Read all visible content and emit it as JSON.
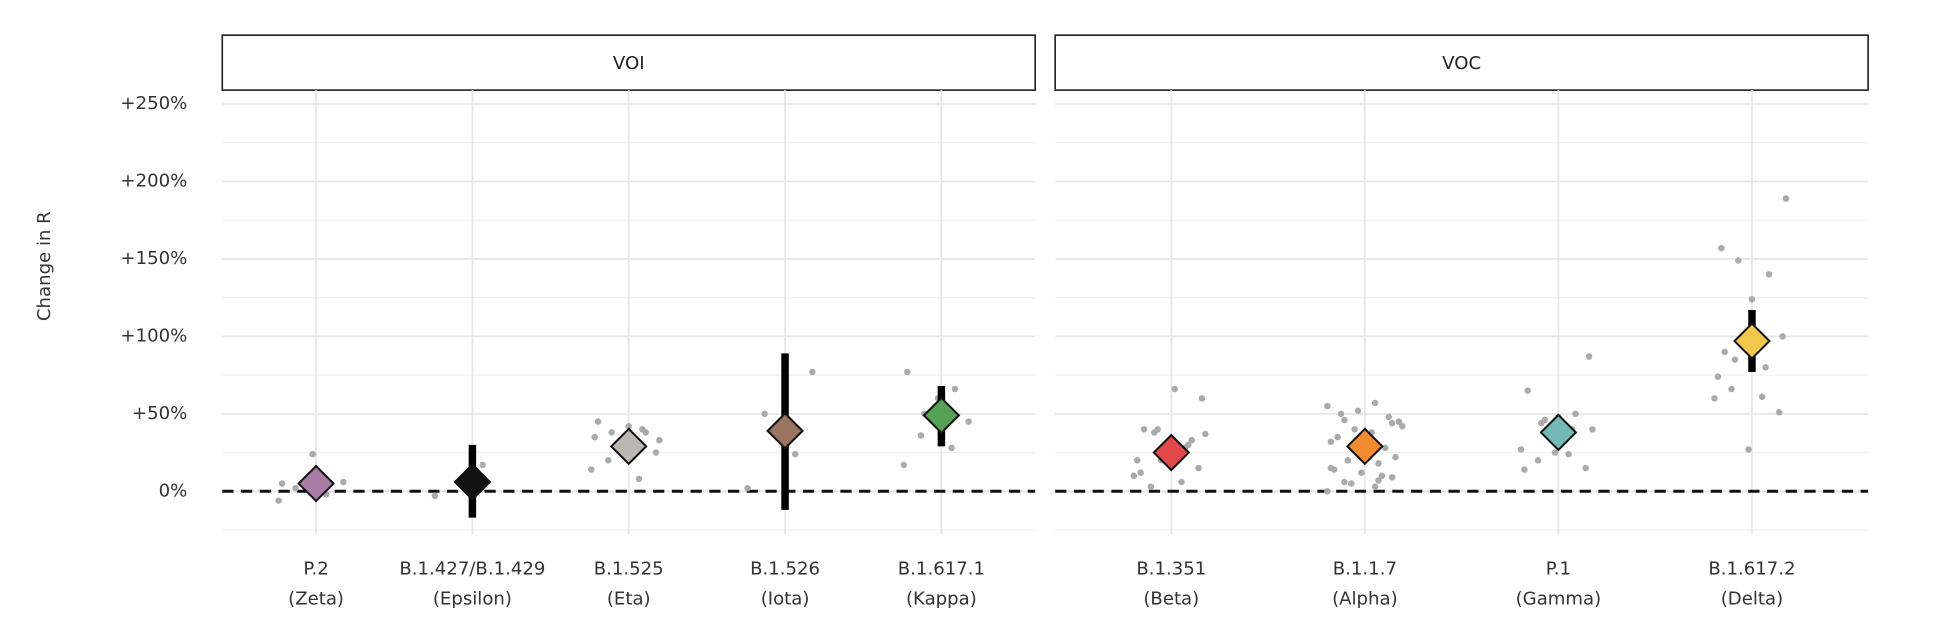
{
  "chart_data": [
    {
      "type": "dot-interval",
      "title": "VOI",
      "ylabel": "Change in R",
      "ylim": [
        -28,
        259
      ],
      "yticks": [
        {
          "value": 0,
          "label": "0%"
        },
        {
          "value": 50,
          "label": "+50%"
        },
        {
          "value": 100,
          "label": "+100%"
        },
        {
          "value": 150,
          "label": "+150%"
        },
        {
          "value": 200,
          "label": "+200%"
        },
        {
          "value": 250,
          "label": "+250%"
        }
      ],
      "grid": true,
      "categories": [
        [
          "P.2",
          "(Zeta)"
        ],
        [
          "B.1.427/B.1.429",
          "(Epsilon)"
        ],
        [
          "B.1.525",
          "(Eta)"
        ],
        [
          "B.1.526",
          "(Iota)"
        ],
        [
          "B.1.617.1",
          "(Kappa)"
        ]
      ],
      "values": [
        5,
        6,
        29,
        39,
        49
      ],
      "lower": [
        null,
        -17,
        null,
        -12,
        29
      ],
      "upper": [
        null,
        30,
        null,
        89,
        68
      ],
      "colors": [
        "#a87ca6",
        "#111111",
        "#bdb7b2",
        "#9b7461",
        "#55a053"
      ],
      "points": [
        [
          -6,
          -2,
          2,
          6,
          24,
          5
        ],
        [
          -3,
          17
        ],
        [
          14,
          8,
          20,
          25,
          30,
          35,
          40,
          38,
          33,
          42,
          45,
          38
        ],
        [
          2,
          24,
          50,
          77
        ],
        [
          17,
          28,
          36,
          45,
          60,
          77,
          66,
          50
        ]
      ]
    },
    {
      "type": "dot-interval",
      "title": "VOC",
      "ylim": [
        -28,
        259
      ],
      "grid": true,
      "categories": [
        [
          "B.1.351",
          "(Beta)"
        ],
        [
          "B.1.1.7",
          "(Alpha)"
        ],
        [
          "P.1",
          "(Gamma)"
        ],
        [
          "B.1.617.2",
          "(Delta)"
        ]
      ],
      "values": [
        25,
        29,
        38,
        97
      ],
      "lower": [
        null,
        null,
        null,
        77
      ],
      "upper": [
        null,
        null,
        null,
        117
      ],
      "colors": [
        "#e0484a",
        "#f28b2f",
        "#74b9b5",
        "#f1c84c"
      ],
      "points": [
        [
          10,
          6,
          3,
          15,
          25,
          20,
          28,
          38,
          60,
          25,
          12,
          30,
          40,
          37,
          66,
          40,
          33,
          20
        ],
        [
          0,
          3,
          6,
          9,
          12,
          15,
          18,
          20,
          22,
          25,
          14,
          10,
          5,
          45,
          30,
          35,
          28,
          40,
          42,
          38,
          50,
          48,
          52,
          55,
          57,
          46,
          44,
          36,
          32,
          7
        ],
        [
          27,
          24,
          20,
          15,
          25,
          14,
          40,
          44,
          87,
          48,
          65,
          50,
          46,
          40
        ],
        [
          60,
          61,
          66,
          51,
          27,
          74,
          80,
          85,
          100,
          124,
          157,
          140,
          149,
          189,
          95,
          90
        ]
      ]
    }
  ]
}
